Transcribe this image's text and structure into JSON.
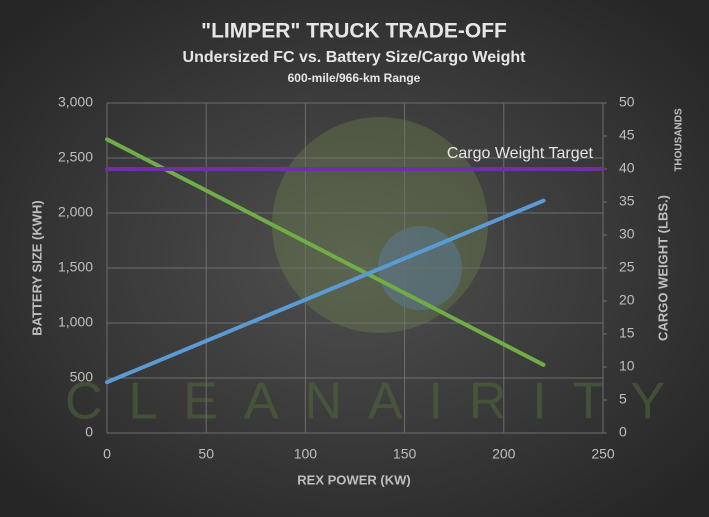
{
  "chart_data": {
    "type": "line",
    "title": "\"LIMPER\" TRUCK TRADE-OFF",
    "subtitle": "Undersized FC vs. Battery Size/Cargo Weight",
    "range_note": "600-mile/966-km Range",
    "watermark": "CLEANAIRITY",
    "x_label": "REX POWER (KW)",
    "y_label": "BATTERY SIZE (KWH)",
    "y2_label": "CARGO WEIGHT (LBS.)",
    "y2_unit": "THOUSANDS",
    "annotation": "Cargo Weight Target",
    "xlim": [
      0,
      250
    ],
    "xticks": [
      0,
      50,
      100,
      150,
      200,
      250
    ],
    "ylim": [
      0,
      3000
    ],
    "yticks": [
      0,
      {
        "value": 500,
        "label": "500"
      },
      {
        "value": 1000,
        "label": "1,000"
      },
      {
        "value": 1500,
        "label": "1,500"
      },
      {
        "value": 2000,
        "label": "2,000"
      },
      {
        "value": 2500,
        "label": "2,500"
      },
      {
        "value": 3000,
        "label": "3,000"
      }
    ],
    "y2lim": [
      0,
      50
    ],
    "y2ticks": [
      0,
      5,
      10,
      15,
      20,
      25,
      30,
      35,
      40,
      45,
      50
    ],
    "grid": true,
    "series": [
      {
        "color": "#70ad47",
        "x": [
          0,
          220
        ],
        "values": [
          2670,
          620
        ]
      },
      {
        "color": "#5b9bd5",
        "axis": "y2",
        "x": [
          0,
          220
        ],
        "values": [
          7.7,
          35.2
        ]
      },
      {
        "color": "#7030a0",
        "axis": "y2",
        "x": [
          0,
          250
        ],
        "values": [
          40,
          40
        ]
      }
    ]
  }
}
